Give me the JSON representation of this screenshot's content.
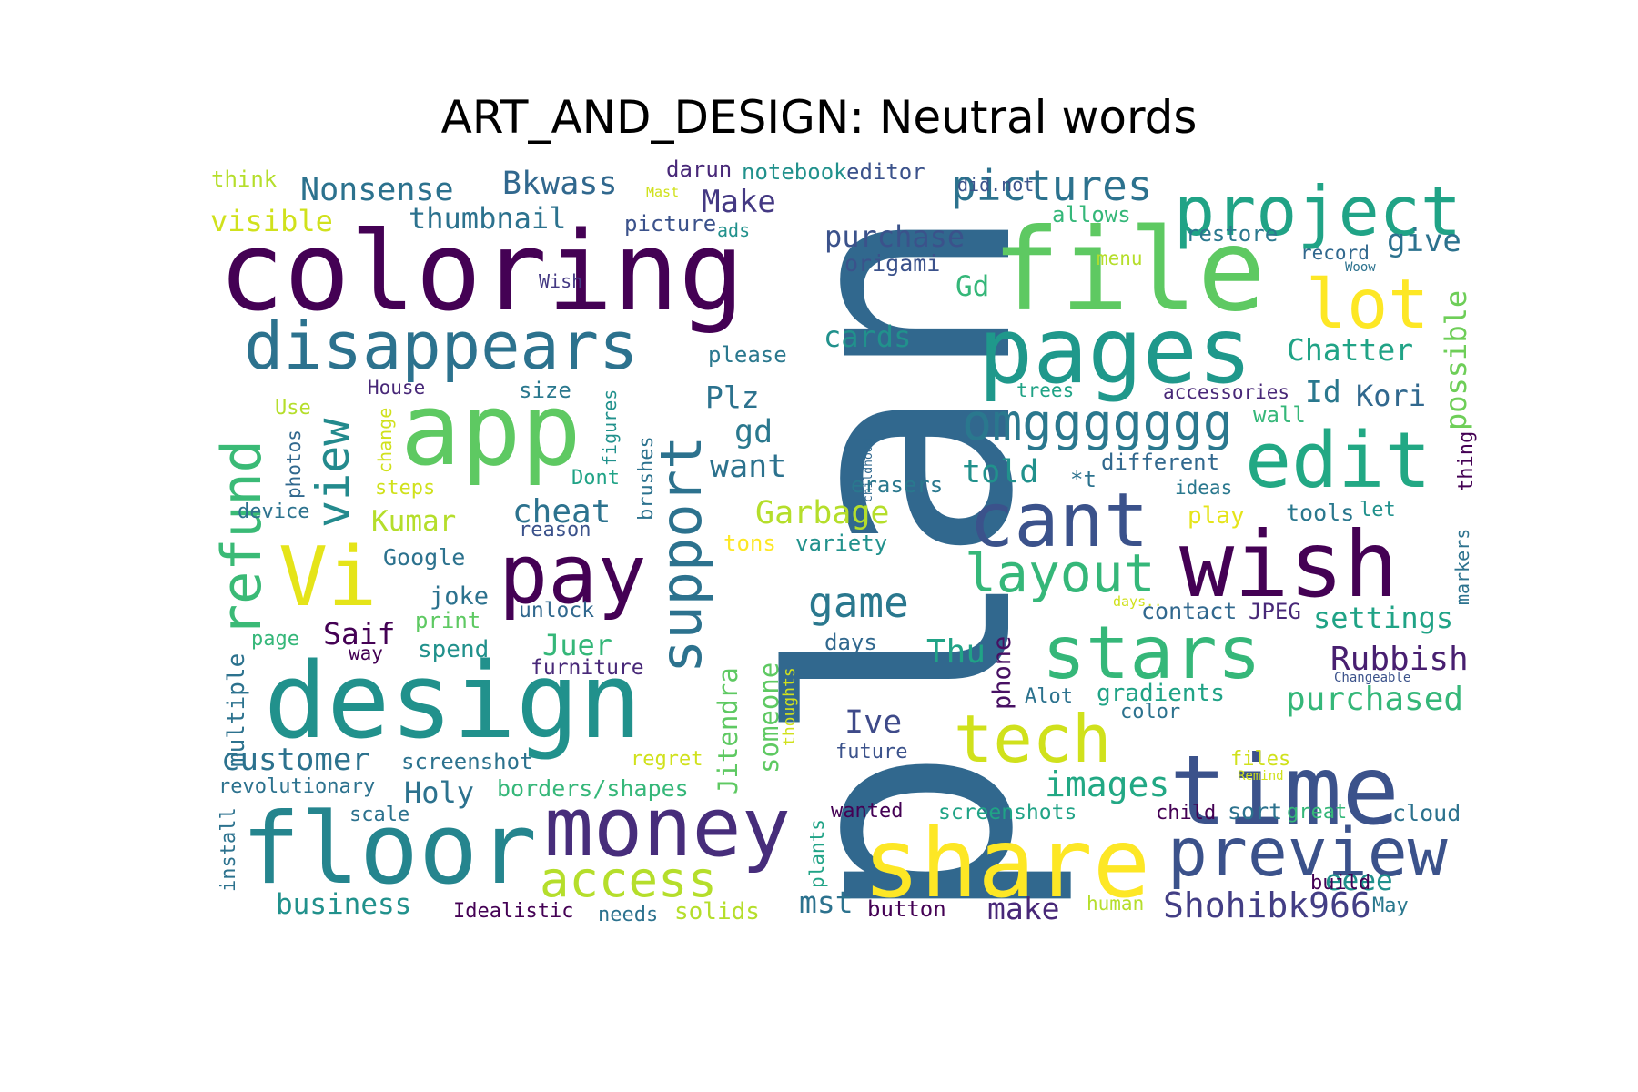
{
  "chart_data": {
    "type": "wordcloud",
    "title": "ART_AND_DESIGN: Neutral words",
    "background": "#ffffff",
    "colormap": "viridis",
    "words": [
      {
        "text": "plan",
        "color": "#31688e"
      },
      {
        "text": "coloring",
        "color": "#440154"
      },
      {
        "text": "file",
        "color": "#5ec962"
      },
      {
        "text": "app",
        "color": "#5ec962"
      },
      {
        "text": "design",
        "color": "#21918c"
      },
      {
        "text": "pages",
        "color": "#1f988b"
      },
      {
        "text": "floor",
        "color": "#25858e"
      },
      {
        "text": "share",
        "color": "#fde725"
      },
      {
        "text": "time",
        "color": "#3b528b"
      },
      {
        "text": "wish",
        "color": "#440154"
      },
      {
        "text": "money",
        "color": "#472d7b"
      },
      {
        "text": "preview",
        "color": "#3b528b"
      },
      {
        "text": "pay",
        "color": "#440154"
      },
      {
        "text": "project",
        "color": "#20a386"
      },
      {
        "text": "disappears",
        "color": "#2c728e"
      },
      {
        "text": "edit",
        "color": "#22a884"
      },
      {
        "text": "stars",
        "color": "#35b779"
      },
      {
        "text": "tech",
        "color": "#d0e11c"
      },
      {
        "text": "cant",
        "color": "#3b528b"
      },
      {
        "text": "Vi",
        "color": "#e5e419"
      },
      {
        "text": "lot",
        "color": "#fde725"
      },
      {
        "text": "support",
        "color": "#2c728e"
      },
      {
        "text": "refund",
        "color": "#3aba76"
      },
      {
        "text": "layout",
        "color": "#35b779"
      },
      {
        "text": "access",
        "color": "#b5de2b"
      },
      {
        "text": "omggggggg",
        "color": "#2a788e"
      },
      {
        "text": "view",
        "color": "#238a8d"
      },
      {
        "text": "pictures",
        "color": "#2c728e"
      },
      {
        "text": "game",
        "color": "#2a788e"
      },
      {
        "text": "images",
        "color": "#22a884"
      },
      {
        "text": "Ive",
        "color": "#3e4a89"
      },
      {
        "text": "Shohibk966",
        "color": "#433e85"
      },
      {
        "text": "Rubbish",
        "color": "#481f70"
      },
      {
        "text": "purchased",
        "color": "#35b779"
      },
      {
        "text": "customer",
        "color": "#2c728e"
      },
      {
        "text": "Garbage",
        "color": "#b5de2b"
      },
      {
        "text": "Nonsense",
        "color": "#2c728e"
      },
      {
        "text": "Bkwass",
        "color": "#31688e"
      },
      {
        "text": "thumbnail",
        "color": "#2c728e"
      },
      {
        "text": "visible",
        "color": "#d0e11c"
      },
      {
        "text": "Make",
        "color": "#443983"
      },
      {
        "text": "purchase",
        "color": "#3b528b"
      },
      {
        "text": "origami",
        "color": "#3b528b"
      },
      {
        "text": "give",
        "color": "#2c728e"
      },
      {
        "text": "Chatter",
        "color": "#20a386"
      },
      {
        "text": "possible",
        "color": "#6ece58"
      },
      {
        "text": "Kori",
        "color": "#31688e"
      },
      {
        "text": "Id",
        "color": "#2a788e"
      },
      {
        "text": "cards",
        "color": "#21918c"
      },
      {
        "text": "Plz",
        "color": "#2c728e"
      },
      {
        "text": "gd",
        "color": "#2a788e"
      },
      {
        "text": "want",
        "color": "#2c728e"
      },
      {
        "text": "told",
        "color": "#21918c"
      },
      {
        "text": "cheat",
        "color": "#2c728e"
      },
      {
        "text": "Kumar",
        "color": "#b5de2b"
      },
      {
        "text": "Saif",
        "color": "#440154"
      },
      {
        "text": "Juer",
        "color": "#35b779"
      },
      {
        "text": "Jitendra",
        "color": "#5ec962"
      },
      {
        "text": "someone",
        "color": "#5ec962"
      },
      {
        "text": "Thu",
        "color": "#20a386"
      },
      {
        "text": "phone",
        "color": "#471063"
      },
      {
        "text": "settings",
        "color": "#20a386"
      },
      {
        "text": "gradients",
        "color": "#20a386"
      },
      {
        "text": "Holy",
        "color": "#2c728e"
      },
      {
        "text": "business",
        "color": "#21918c"
      },
      {
        "text": "make",
        "color": "#482878"
      },
      {
        "text": "mst",
        "color": "#2c728e"
      },
      {
        "text": "eeee",
        "color": "#21918c"
      },
      {
        "text": "Gd",
        "color": "#35b779"
      },
      {
        "text": "think",
        "color": "#b5de2b"
      },
      {
        "text": "darun",
        "color": "#482878"
      },
      {
        "text": "notebook",
        "color": "#21918c"
      },
      {
        "text": "editor",
        "color": "#3b528b"
      },
      {
        "text": "Mast",
        "color": "#d0e11c"
      },
      {
        "text": "picture",
        "color": "#3b528b"
      },
      {
        "text": "ads",
        "color": "#21918c"
      },
      {
        "text": "did.not",
        "color": "#3b528b"
      },
      {
        "text": "allows",
        "color": "#35b779"
      },
      {
        "text": "restore",
        "color": "#2a788e"
      },
      {
        "text": "record",
        "color": "#31688e"
      },
      {
        "text": "Woow",
        "color": "#2c728e"
      },
      {
        "text": "menu",
        "color": "#b5de2b"
      },
      {
        "text": "Wish",
        "color": "#443983"
      },
      {
        "text": "please",
        "color": "#2a788e"
      },
      {
        "text": "size",
        "color": "#2a788e"
      },
      {
        "text": "House",
        "color": "#482878"
      },
      {
        "text": "Use",
        "color": "#b5de2b"
      },
      {
        "text": "photos",
        "color": "#31688e"
      },
      {
        "text": "change",
        "color": "#d0e11c"
      },
      {
        "text": "steps",
        "color": "#d0e11c"
      },
      {
        "text": "figures",
        "color": "#21918c"
      },
      {
        "text": "brushes",
        "color": "#2c728e"
      },
      {
        "text": "Dont",
        "color": "#20a386"
      },
      {
        "text": "device",
        "color": "#2c728e"
      },
      {
        "text": "reason",
        "color": "#3b528b"
      },
      {
        "text": "trees",
        "color": "#20a386"
      },
      {
        "text": "accessories",
        "color": "#482878"
      },
      {
        "text": "wall",
        "color": "#35b779"
      },
      {
        "text": "different",
        "color": "#31688e"
      },
      {
        "text": "thing",
        "color": "#440154"
      },
      {
        "text": "childhood",
        "color": "#31688e"
      },
      {
        "text": "erasers",
        "color": "#2a788e"
      },
      {
        "text": "*t",
        "color": "#2c728e"
      },
      {
        "text": "ideas",
        "color": "#2a788e"
      },
      {
        "text": "tools",
        "color": "#2a788e"
      },
      {
        "text": "let",
        "color": "#21918c"
      },
      {
        "text": "play",
        "color": "#e5e419"
      },
      {
        "text": "markers",
        "color": "#2c728e"
      },
      {
        "text": "tons",
        "color": "#fde725"
      },
      {
        "text": "variety",
        "color": "#21918c"
      },
      {
        "text": "Google",
        "color": "#2c728e"
      },
      {
        "text": "joke",
        "color": "#2c728e"
      },
      {
        "text": "unlock",
        "color": "#31688e"
      },
      {
        "text": "print",
        "color": "#5ec962"
      },
      {
        "text": "spend",
        "color": "#21918c"
      },
      {
        "text": "page",
        "color": "#35b779"
      },
      {
        "text": "way",
        "color": "#440154"
      },
      {
        "text": "furniture",
        "color": "#482878"
      },
      {
        "text": "days",
        "color": "#31688e"
      },
      {
        "text": "contact",
        "color": "#31688e"
      },
      {
        "text": "JPEG",
        "color": "#482878"
      },
      {
        "text": "days..",
        "color": "#d0e11c"
      },
      {
        "text": "Changeable",
        "color": "#3b528b"
      },
      {
        "text": "multiple",
        "color": "#2c728e"
      },
      {
        "text": "thoughts",
        "color": "#d0e11c"
      },
      {
        "text": "future",
        "color": "#3b528b"
      },
      {
        "text": "Alot",
        "color": "#2c728e"
      },
      {
        "text": "color",
        "color": "#2c728e"
      },
      {
        "text": "screenshot",
        "color": "#2c728e"
      },
      {
        "text": "regret",
        "color": "#d0e11c"
      },
      {
        "text": "files",
        "color": "#d0e11c"
      },
      {
        "text": "Remind",
        "color": "#d0e11c"
      },
      {
        "text": "revolutionary",
        "color": "#2c728e"
      },
      {
        "text": "borders/shapes",
        "color": "#35b779"
      },
      {
        "text": "scale",
        "color": "#2c728e"
      },
      {
        "text": "wanted",
        "color": "#440154"
      },
      {
        "text": "screenshots",
        "color": "#20a386"
      },
      {
        "text": "child",
        "color": "#440154"
      },
      {
        "text": "sort",
        "color": "#2c728e"
      },
      {
        "text": "great",
        "color": "#35b779"
      },
      {
        "text": "cloud",
        "color": "#2c728e"
      },
      {
        "text": "install",
        "color": "#2c728e"
      },
      {
        "text": "plants",
        "color": "#20a386"
      },
      {
        "text": "build",
        "color": "#440154"
      },
      {
        "text": "May",
        "color": "#2a788e"
      },
      {
        "text": "Idealistic",
        "color": "#440154"
      },
      {
        "text": "needs",
        "color": "#2c728e"
      },
      {
        "text": "solids",
        "color": "#b5de2b"
      },
      {
        "text": "button",
        "color": "#440154"
      },
      {
        "text": "human",
        "color": "#b5de2b"
      }
    ]
  }
}
